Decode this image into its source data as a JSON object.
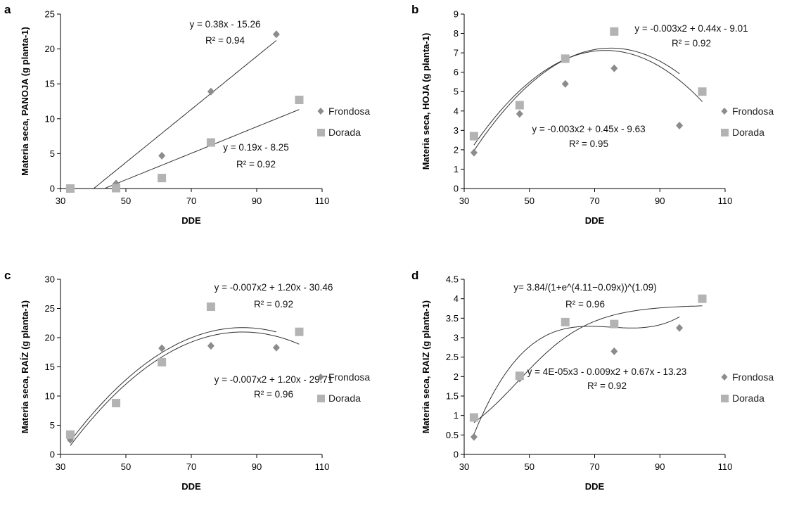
{
  "colors": {
    "frondosa": "#8c8c8c",
    "dorada": "#b3b3b3",
    "axis": "#000000",
    "fit": "#333333"
  },
  "chart_data": [
    {
      "type": "scatter",
      "panel": "a",
      "xlabel": "DDE",
      "ylabel": "Materia seca, PANOJA (g planta-1)",
      "xlim": [
        30,
        110
      ],
      "ylim": [
        0,
        25
      ],
      "xticks": [
        30,
        50,
        70,
        90,
        110
      ],
      "yticks": [
        0,
        5,
        10,
        15,
        20,
        25
      ],
      "legend": [
        "Frondosa",
        "Dorada"
      ],
      "series": [
        {
          "name": "Frondosa",
          "marker": "diamond",
          "x": [
            47,
            61,
            76,
            96
          ],
          "y": [
            0.7,
            4.7,
            13.9,
            22.1
          ]
        },
        {
          "name": "Dorada",
          "marker": "square",
          "x": [
            33,
            47,
            61,
            76,
            103
          ],
          "y": [
            0,
            0.05,
            1.5,
            6.6,
            12.7
          ]
        }
      ],
      "fits": [
        {
          "kind": "linear",
          "coef": [
            0.38,
            -15.26
          ],
          "range": [
            40.2,
            96
          ],
          "label": "y = 0.38x - 15.26",
          "r2": "R² = 0.94"
        },
        {
          "kind": "linear",
          "coef": [
            0.19,
            -8.25
          ],
          "range": [
            43.5,
            103
          ],
          "label": "y = 0.19x - 8.25",
          "r2": "R² = 0.92"
        }
      ]
    },
    {
      "type": "scatter",
      "panel": "b",
      "xlabel": "DDE",
      "ylabel": "Materia seca, HOJA (g planta-1)",
      "xlim": [
        30,
        110
      ],
      "ylim": [
        0,
        9
      ],
      "xticks": [
        30,
        50,
        70,
        90,
        110
      ],
      "yticks": [
        0,
        1,
        2,
        3,
        4,
        5,
        6,
        7,
        8,
        9
      ],
      "legend": [
        "Frondosa",
        "Dorada"
      ],
      "series": [
        {
          "name": "Frondosa",
          "marker": "diamond",
          "x": [
            33,
            47,
            61,
            76,
            96
          ],
          "y": [
            1.85,
            3.85,
            5.4,
            6.2,
            3.25
          ]
        },
        {
          "name": "Dorada",
          "marker": "square",
          "x": [
            33,
            47,
            61,
            76,
            103
          ],
          "y": [
            2.7,
            4.3,
            6.7,
            8.1,
            5.0
          ]
        }
      ],
      "fits": [
        {
          "kind": "poly2",
          "coef": [
            -0.003,
            0.44,
            -9.01
          ],
          "range": [
            33,
            103
          ],
          "label": "y = -0.003x2 + 0.44x - 9.01",
          "r2": "R² = 0.92"
        },
        {
          "kind": "poly2",
          "coef": [
            -0.003,
            0.45,
            -9.63
          ],
          "range": [
            33,
            96
          ],
          "label": "y = -0.003x2 + 0.45x - 9.63",
          "r2": "R² = 0.95"
        }
      ]
    },
    {
      "type": "scatter",
      "panel": "c",
      "xlabel": "DDE",
      "ylabel": "Materia seca, RAÍZ (g planta-1)",
      "xlim": [
        30,
        110
      ],
      "ylim": [
        0,
        30
      ],
      "xticks": [
        30,
        50,
        70,
        90,
        110
      ],
      "yticks": [
        0,
        5,
        10,
        15,
        20,
        25,
        30
      ],
      "legend": [
        "Frondosa",
        "Dorada"
      ],
      "series": [
        {
          "name": "Frondosa",
          "marker": "diamond",
          "x": [
            33,
            47,
            61,
            76,
            96
          ],
          "y": [
            2.5,
            8.8,
            18.2,
            18.6,
            18.3
          ]
        },
        {
          "name": "Dorada",
          "marker": "square",
          "x": [
            33,
            47,
            61,
            76,
            103
          ],
          "y": [
            3.4,
            8.8,
            15.8,
            25.3,
            21.0
          ]
        }
      ],
      "fits": [
        {
          "kind": "poly2",
          "coef": [
            -0.007,
            1.2,
            -30.46
          ],
          "range": [
            33,
            103
          ],
          "label": "y = -0.007x2 + 1.20x - 30.46",
          "r2": "R² = 0.92"
        },
        {
          "kind": "poly2",
          "coef": [
            -0.007,
            1.2,
            -29.71
          ],
          "range": [
            33,
            96
          ],
          "label": "y = -0.007x2 + 1.20x - 29.71",
          "r2": "R² = 0.96"
        }
      ]
    },
    {
      "type": "scatter",
      "panel": "d",
      "xlabel": "DDE",
      "ylabel": "Materia seca, RAIZ (g planta-1)",
      "xlim": [
        30,
        110
      ],
      "ylim": [
        0,
        4.5
      ],
      "xticks": [
        30,
        50,
        70,
        90,
        110
      ],
      "yticks": [
        0,
        0.5,
        1,
        1.5,
        2,
        2.5,
        3,
        3.5,
        4,
        4.5
      ],
      "legend": [
        "Frondosa",
        "Dorada"
      ],
      "series": [
        {
          "name": "Frondosa",
          "marker": "diamond",
          "x": [
            33,
            47,
            61,
            76,
            96
          ],
          "y": [
            0.45,
            1.95,
            3.4,
            2.65,
            3.25
          ]
        },
        {
          "name": "Dorada",
          "marker": "square",
          "x": [
            33,
            47,
            61,
            76,
            103
          ],
          "y": [
            0.95,
            2.02,
            3.4,
            3.35,
            4.0
          ]
        }
      ],
      "fits": [
        {
          "kind": "logistic",
          "coef": [
            3.84,
            4.11,
            0.09,
            1.09
          ],
          "range": [
            33,
            103
          ],
          "label": "y= 3.84/(1+e^(4.11−0.09x))^(1.09)",
          "r2": "R² = 0.96"
        },
        {
          "kind": "poly3",
          "coef": [
            4e-05,
            -0.009,
            0.67,
            -13.23
          ],
          "range": [
            33,
            96
          ],
          "label": "y = 4E-05x3 - 0.009x2 + 0.67x - 13.23",
          "r2": "R² = 0.92"
        }
      ]
    }
  ]
}
